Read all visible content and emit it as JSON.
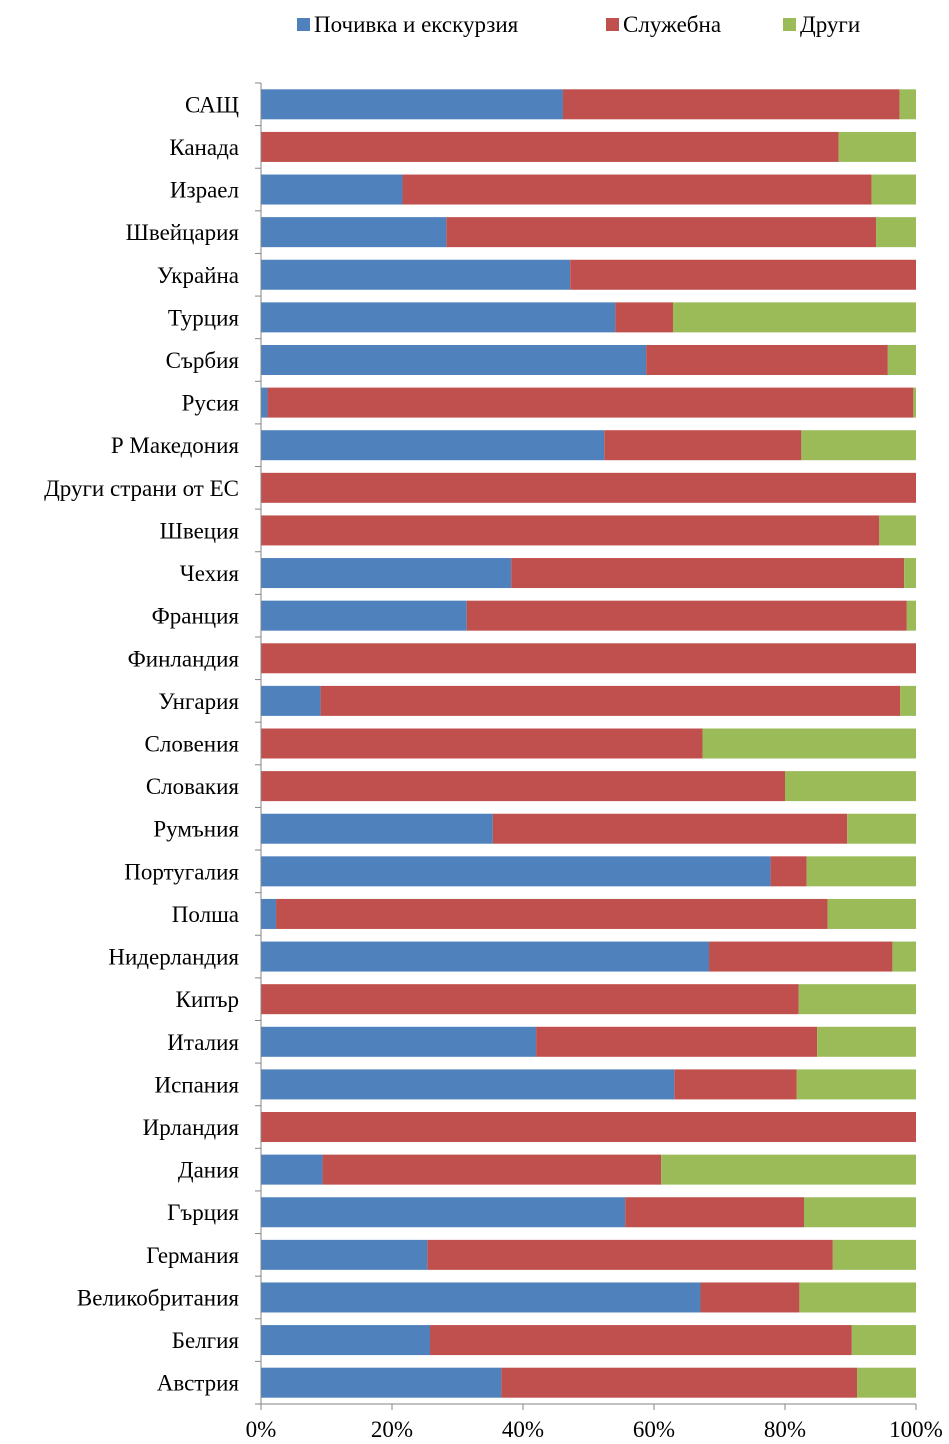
{
  "chart_data": {
    "type": "bar",
    "orientation": "horizontal",
    "stacked": "percent",
    "categories": [
      "САЩ",
      "Канада",
      "Израел",
      "Швейцария",
      "Украйна",
      "Турция",
      "Сърбия",
      "Русия",
      "Р Македония",
      "Други страни от ЕС",
      "Швеция",
      "Чехия",
      "Франция",
      "Финландия",
      "Унгария",
      "Словения",
      "Словакия",
      "Румъния",
      "Португалия",
      "Полша",
      "Нидерландия",
      "Кипър",
      "Италия",
      "Испания",
      "Ирландия",
      "Дания",
      "Гърция",
      "Германия",
      "Великобритания",
      "Белгия",
      "Австрия"
    ],
    "series": [
      {
        "name": "Почивка и екскурзия",
        "color": "#4F81BD",
        "values": [
          46.1,
          0,
          21.6,
          28.3,
          47.2,
          54.1,
          58.8,
          1.0,
          52.4,
          0,
          0,
          38.2,
          31.4,
          0,
          9.1,
          0,
          0,
          35.4,
          77.8,
          2.3,
          68.4,
          0,
          42.0,
          63.1,
          0,
          9.4,
          55.6,
          25.4,
          67.1,
          25.8,
          36.7
        ]
      },
      {
        "name": "Служебна",
        "color": "#C0504D",
        "values": [
          51.4,
          88.2,
          71.6,
          65.6,
          52.8,
          8.8,
          36.9,
          98.6,
          30.1,
          100,
          94.4,
          60.0,
          67.2,
          100,
          88.5,
          67.4,
          80.0,
          54.1,
          5.5,
          84.2,
          28.0,
          82.1,
          42.9,
          18.7,
          100,
          51.7,
          27.3,
          61.9,
          15.1,
          64.4,
          54.3
        ]
      },
      {
        "name": "Други",
        "color": "#9BBB59",
        "values": [
          2.5,
          11.8,
          6.8,
          6.1,
          0,
          37.1,
          4.3,
          0.4,
          17.5,
          0,
          5.6,
          1.8,
          1.4,
          0,
          2.4,
          32.6,
          20.0,
          10.5,
          16.7,
          13.5,
          3.6,
          17.9,
          15.1,
          18.2,
          0,
          38.9,
          17.1,
          12.7,
          17.8,
          9.8,
          9.0
        ]
      }
    ],
    "xlim": [
      0,
      100
    ],
    "x_ticks": [
      "0%",
      "20%",
      "40%",
      "60%",
      "80%",
      "100%"
    ],
    "x_tick_values": [
      0,
      20,
      40,
      60,
      80,
      100
    ],
    "legend_position": "top",
    "grid": false
  }
}
